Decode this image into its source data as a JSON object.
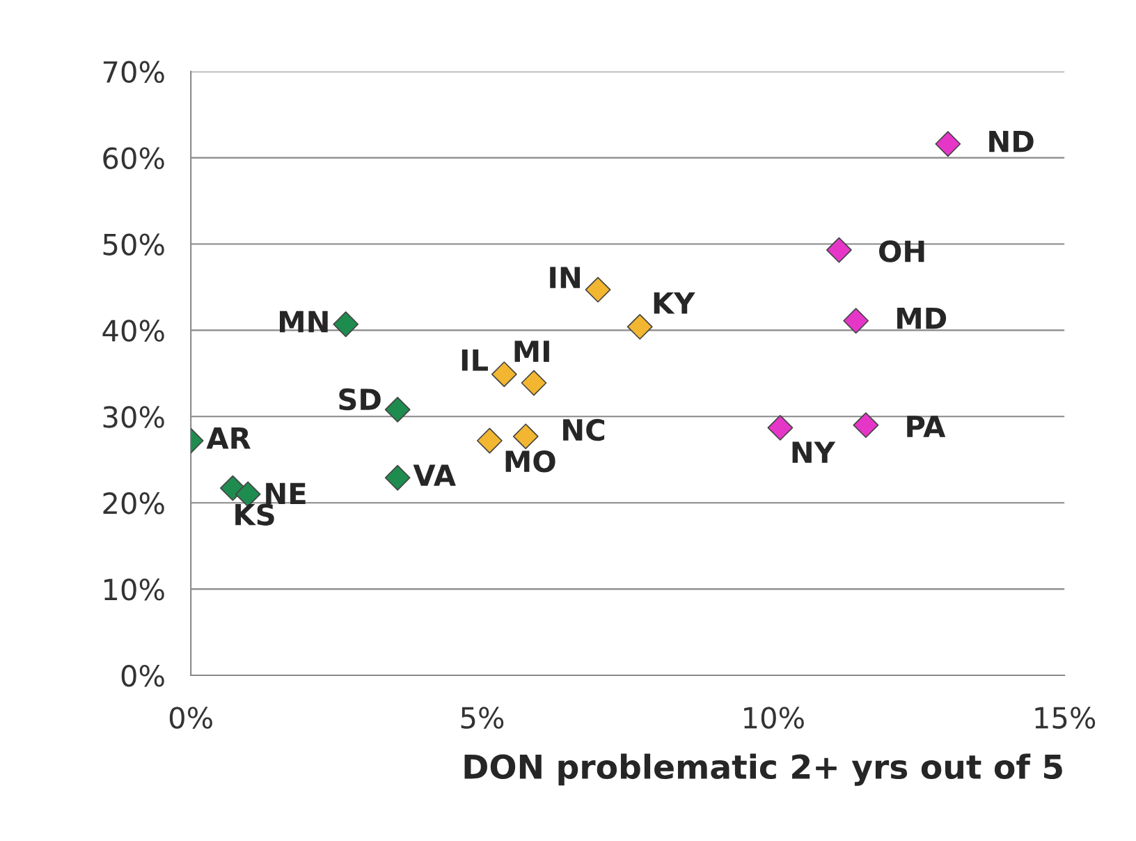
{
  "chart_data": {
    "type": "scatter",
    "xlabel": "DON problematic 2+ yrs out of 5",
    "marker": "diamond",
    "grid": "y",
    "xlim": [
      0,
      15
    ],
    "xticks": [
      {
        "value": 0,
        "label": "0%"
      },
      {
        "value": 5,
        "label": "5%"
      },
      {
        "value": 10,
        "label": "10%"
      },
      {
        "value": 15,
        "label": "15%"
      }
    ],
    "ylim": [
      0,
      70
    ],
    "yticks": [
      {
        "value": 0,
        "label": "0%"
      },
      {
        "value": 10,
        "label": "10%"
      },
      {
        "value": 20,
        "label": "20%"
      },
      {
        "value": 30,
        "label": "30%"
      },
      {
        "value": 40,
        "label": "40%"
      },
      {
        "value": 50,
        "label": "50%"
      },
      {
        "value": 60,
        "label": "60%"
      },
      {
        "value": 70,
        "label": "70%"
      }
    ],
    "series": [
      {
        "color": "#1e8c4e",
        "x": [
          0,
          0.72,
          0.98,
          2.66,
          3.55,
          3.55
        ],
        "values": [
          27.2,
          21.7,
          21.0,
          40.7,
          30.8,
          22.9
        ]
      },
      {
        "color": "#f2b630",
        "x": [
          6.99,
          7.71,
          5.38,
          5.89,
          5.13,
          5.75
        ],
        "values": [
          44.7,
          40.4,
          34.9,
          33.9,
          27.2,
          27.7
        ]
      },
      {
        "color": "#e636c8",
        "x": [
          13.0,
          11.13,
          11.42,
          10.12,
          11.59
        ],
        "values": [
          61.6,
          49.3,
          41.1,
          28.7,
          29.0
        ]
      }
    ],
    "annotations": [
      {
        "text": "AR",
        "x": 0,
        "y": 27.2
      },
      {
        "text": "KS",
        "x": 0.72,
        "y": 21.7
      },
      {
        "text": "NE",
        "x": 0.98,
        "y": 21.0
      },
      {
        "text": "MN",
        "x": 2.66,
        "y": 40.7
      },
      {
        "text": "SD",
        "x": 3.55,
        "y": 30.8
      },
      {
        "text": "VA",
        "x": 3.55,
        "y": 22.9
      },
      {
        "text": "IN",
        "x": 6.99,
        "y": 44.7
      },
      {
        "text": "KY",
        "x": 7.71,
        "y": 40.4
      },
      {
        "text": "IL",
        "x": 5.38,
        "y": 34.9
      },
      {
        "text": "MI",
        "x": 5.89,
        "y": 33.9
      },
      {
        "text": "MO",
        "x": 5.13,
        "y": 27.2
      },
      {
        "text": "NC",
        "x": 5.75,
        "y": 27.7
      },
      {
        "text": "ND",
        "x": 13.0,
        "y": 61.6
      },
      {
        "text": "OH",
        "x": 11.13,
        "y": 49.3
      },
      {
        "text": "MD",
        "x": 11.42,
        "y": 41.1
      },
      {
        "text": "NY",
        "x": 10.12,
        "y": 28.7
      },
      {
        "text": "PA",
        "x": 11.59,
        "y": 29.0
      }
    ]
  }
}
